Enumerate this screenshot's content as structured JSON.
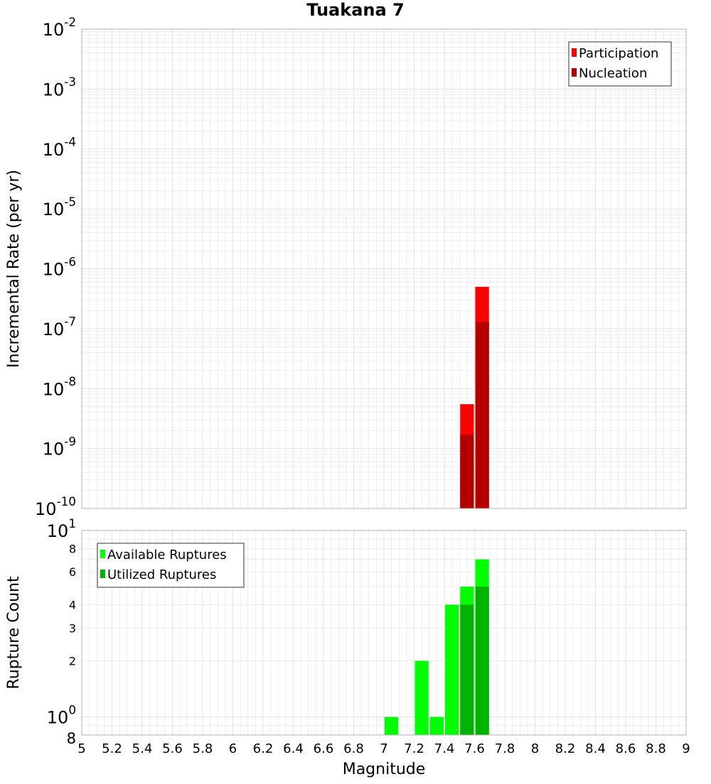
{
  "title": "Tuakana 7",
  "xlabel": "Magnitude",
  "x_ticks": [
    "5",
    "5.2",
    "5.4",
    "5.6",
    "5.8",
    "6",
    "6.2",
    "6.4",
    "6.6",
    "6.8",
    "7",
    "7.2",
    "7.4",
    "7.6",
    "7.8",
    "8",
    "8.2",
    "8.4",
    "8.6",
    "8.8",
    "9"
  ],
  "colors": {
    "participation": "#ff0000",
    "nucleation": "#b40000",
    "available": "#00ff00",
    "utilized": "#00b400",
    "grid": "#e4e4e4",
    "frame": "#b0b0b0"
  },
  "chart_data": [
    {
      "type": "bar",
      "ylabel": "Incremental Rate (per yr)",
      "yscale": "log",
      "xlim": [
        5,
        9
      ],
      "ylim": [
        1e-10,
        0.01
      ],
      "bar_width": 0.1,
      "y_ticks": [
        {
          "base": "10",
          "exp": "-2"
        },
        {
          "base": "10",
          "exp": "-3"
        },
        {
          "base": "10",
          "exp": "-4"
        },
        {
          "base": "10",
          "exp": "-5"
        },
        {
          "base": "10",
          "exp": "-6"
        },
        {
          "base": "10",
          "exp": "-7"
        },
        {
          "base": "10",
          "exp": "-8"
        },
        {
          "base": "10",
          "exp": "-9"
        },
        {
          "base": "10",
          "exp": "-10"
        }
      ],
      "legend": "top-right",
      "series": [
        {
          "name": "Participation",
          "color_key": "participation",
          "x": [
            7.55,
            7.65
          ],
          "values": [
            5.5e-09,
            5e-07
          ]
        },
        {
          "name": "Nucleation",
          "color_key": "nucleation",
          "x": [
            7.55,
            7.65
          ],
          "values": [
            1.7e-09,
            1.3e-07
          ]
        }
      ]
    },
    {
      "type": "bar",
      "ylabel": "Rupture Count",
      "yscale": "log",
      "xlim": [
        5,
        9
      ],
      "ylim": [
        0.8,
        10
      ],
      "bar_width": 0.1,
      "y_ticks": [
        {
          "value": 10,
          "base": "10",
          "exp": "1"
        },
        {
          "value": 8,
          "label": "8"
        },
        {
          "value": 6,
          "label": "6"
        },
        {
          "value": 4,
          "label": "4"
        },
        {
          "value": 3,
          "label": "3"
        },
        {
          "value": 2,
          "label": "2"
        },
        {
          "value": 1,
          "base": "10",
          "exp": "0"
        },
        {
          "value": 0.8,
          "label": "8"
        }
      ],
      "legend": "top-left",
      "series": [
        {
          "name": "Available Ruptures",
          "color_key": "available",
          "x": [
            7.05,
            7.25,
            7.35,
            7.45,
            7.55,
            7.65
          ],
          "values": [
            1,
            2,
            1,
            4,
            5,
            7
          ]
        },
        {
          "name": "Utilized Ruptures",
          "color_key": "utilized",
          "x": [
            7.55,
            7.65
          ],
          "values": [
            4,
            5
          ]
        }
      ]
    }
  ]
}
